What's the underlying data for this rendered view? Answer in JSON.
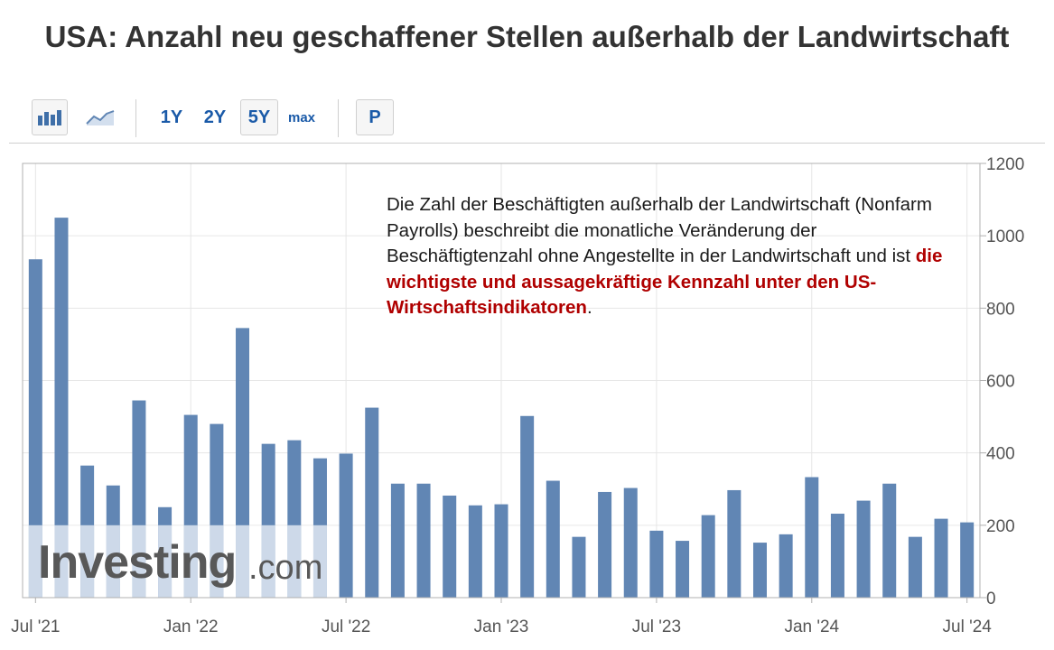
{
  "page_title": "USA: Anzahl neu geschaffener Stellen außerhalb der Landwirtschaft",
  "toolbar": {
    "bar_chart_icon": "bar-chart-icon",
    "line_chart_icon": "line-chart-icon",
    "range_1y": "1Y",
    "range_2y": "2Y",
    "range_5y": "5Y",
    "range_max": "max",
    "p_button": "P",
    "active_range": "5Y"
  },
  "annotation": {
    "text_plain": "Die Zahl der Beschäftigten außerhalb der Landwirtschaft (Nonfarm Payrolls) beschreibt die monatliche Veränderung der Beschäftigtenzahl ohne Angestellte in der Landwirtschaft und ist ",
    "text_highlight": "die wichtigste und aussagekräftige Kennzahl unter den US-Wirtschaftsindikatoren",
    "text_end": ".",
    "highlight_color": "#b00000"
  },
  "watermark": {
    "brand": "Investing",
    "suffix": ".com"
  },
  "colors": {
    "bar": "#6186b4",
    "watermark_band": "#b2c5de",
    "grid": "#e6e6e6",
    "axis": "#b0b0b0"
  },
  "chart_data": {
    "type": "bar",
    "categories": [
      "Jul 2021",
      "Aug 2021",
      "Sep 2021",
      "Oct 2021",
      "Nov 2021",
      "Dec 2021",
      "Jan 2022",
      "Feb 2022",
      "Mar 2022",
      "Apr 2022",
      "May 2022",
      "Jun 2022",
      "Jul 2022",
      "Aug 2022",
      "Sep 2022",
      "Oct 2022",
      "Nov 2022",
      "Dec 2022",
      "Jan 2023",
      "Feb 2023",
      "Mar 2023",
      "Apr 2023",
      "May 2023",
      "Jun 2023",
      "Jul 2023",
      "Aug 2023",
      "Sep 2023",
      "Oct 2023",
      "Nov 2023",
      "Dec 2023",
      "Jan 2024",
      "Feb 2024",
      "Mar 2024",
      "Apr 2024",
      "May 2024",
      "Jun 2024",
      "Jul 2024"
    ],
    "values": [
      935,
      1050,
      365,
      310,
      545,
      250,
      505,
      480,
      745,
      425,
      435,
      385,
      398,
      525,
      315,
      315,
      282,
      255,
      258,
      502,
      323,
      168,
      292,
      303,
      185,
      157,
      228,
      297,
      152,
      175,
      333,
      232,
      268,
      315,
      168,
      218,
      208
    ],
    "x_tick_labels": [
      "Jul '21",
      "Jan '22",
      "Jul '22",
      "Jan '23",
      "Jul '23",
      "Jan '24",
      "Jul '24"
    ],
    "x_tick_indices": [
      0,
      6,
      12,
      18,
      24,
      30,
      36
    ],
    "y_ticks": [
      0,
      200,
      400,
      600,
      800,
      1000,
      1200
    ],
    "ylim": [
      0,
      1200
    ],
    "y_axis_side": "right",
    "grid": true,
    "title": "",
    "xlabel": "",
    "ylabel": ""
  }
}
